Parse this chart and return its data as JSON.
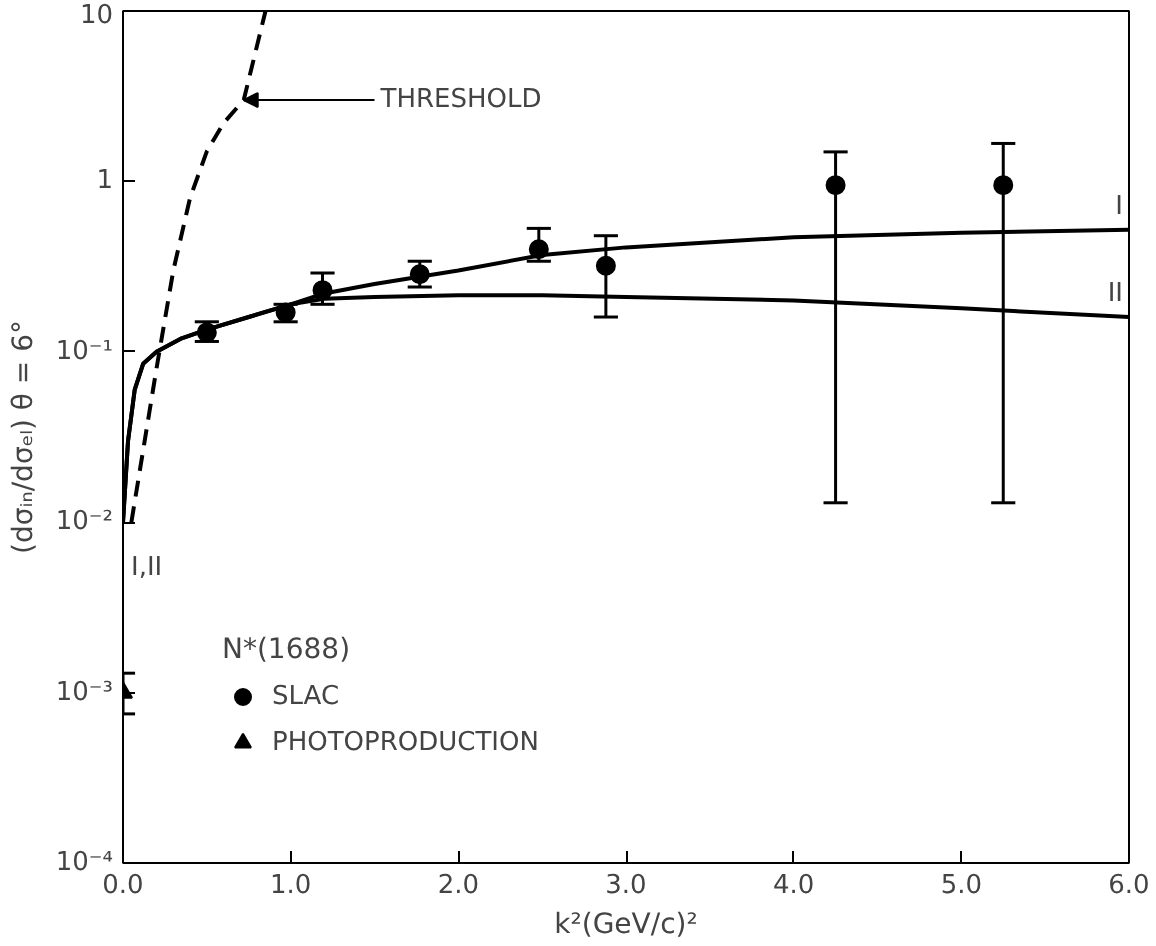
{
  "chart_data": {
    "type": "scatter",
    "xlabel": "k²(GeV/c)²",
    "ylabel": "(dσᵢₙ/dσₑₗ) θ = 6°",
    "legend_title": "N*(1688)",
    "log": "y",
    "grid": false,
    "legend": "bottom left",
    "xlim": [
      0,
      6
    ],
    "ylim": [
      0.0001,
      10
    ],
    "xticks": [
      {
        "value": 0,
        "label": "0.0"
      },
      {
        "value": 1,
        "label": "1.0"
      },
      {
        "value": 2,
        "label": "2.0"
      },
      {
        "value": 3,
        "label": "3.0"
      },
      {
        "value": 4,
        "label": "4.0"
      },
      {
        "value": 5,
        "label": "5.0"
      },
      {
        "value": 6,
        "label": "6.0"
      }
    ],
    "yticks": [
      {
        "value": 0.0001,
        "label": "10⁻⁴"
      },
      {
        "value": 0.001,
        "label": "10⁻³"
      },
      {
        "value": 0.01,
        "label": "10⁻²"
      },
      {
        "value": 0.1,
        "label": "10⁻¹"
      },
      1,
      10
    ],
    "series": [
      {
        "name": "SLAC",
        "color": "#000000",
        "marker": "circle",
        "x": [
          0.5,
          0.97,
          1.19,
          1.77,
          2.48,
          2.88,
          4.25,
          5.25
        ],
        "values": [
          0.13,
          0.17,
          0.23,
          0.285,
          0.4,
          0.32,
          0.95,
          0.95
        ],
        "errors": [
          [
            0.115,
            0.15
          ],
          [
            0.15,
            0.19
          ],
          [
            0.19,
            0.29
          ],
          [
            0.24,
            0.34
          ],
          [
            0.34,
            0.53
          ],
          [
            0.16,
            0.48
          ],
          [
            0.013,
            1.49
          ],
          [
            0.013,
            1.67
          ]
        ]
      },
      {
        "name": "PHOTOPRODUCTION",
        "color": "#000000",
        "marker": "triangle",
        "x": [
          0
        ],
        "values": [
          0.001
        ],
        "errors": [
          [
            0.00075,
            0.0013
          ]
        ]
      },
      {
        "name": "I",
        "type": "line",
        "color": "#000000",
        "line_style": "solid",
        "x": [
          0,
          0.03,
          0.07,
          0.12,
          0.2,
          0.35,
          0.5,
          0.75,
          1.0,
          1.2,
          1.5,
          2.0,
          2.5,
          3.0,
          4.0,
          5.0,
          6.0
        ],
        "values": [
          0.01,
          0.03,
          0.06,
          0.085,
          0.1,
          0.12,
          0.135,
          0.16,
          0.19,
          0.22,
          0.25,
          0.3,
          0.37,
          0.41,
          0.47,
          0.5,
          0.52
        ]
      },
      {
        "name": "II",
        "type": "line",
        "color": "#000000",
        "line_style": "solid",
        "x": [
          0,
          0.03,
          0.07,
          0.12,
          0.2,
          0.35,
          0.5,
          0.75,
          1.0,
          1.2,
          1.5,
          2.0,
          2.5,
          3.0,
          4.0,
          5.0,
          6.0
        ],
        "values": [
          0.01,
          0.03,
          0.06,
          0.085,
          0.1,
          0.12,
          0.135,
          0.16,
          0.19,
          0.205,
          0.21,
          0.215,
          0.215,
          0.21,
          0.2,
          0.18,
          0.16
        ]
      },
      {
        "type": "line",
        "color": "#000000",
        "line_style": "dashed",
        "x": [
          0.05,
          0.1,
          0.2,
          0.3,
          0.4,
          0.5,
          0.6,
          0.72,
          0.85
        ],
        "values": [
          0.01,
          0.02,
          0.08,
          0.3,
          0.8,
          1.5,
          2.2,
          3.0,
          10
        ]
      }
    ],
    "annotations": [
      {
        "text": "THRESHOLD",
        "x": 0.72,
        "y": 3.0
      },
      "I,II"
    ]
  }
}
